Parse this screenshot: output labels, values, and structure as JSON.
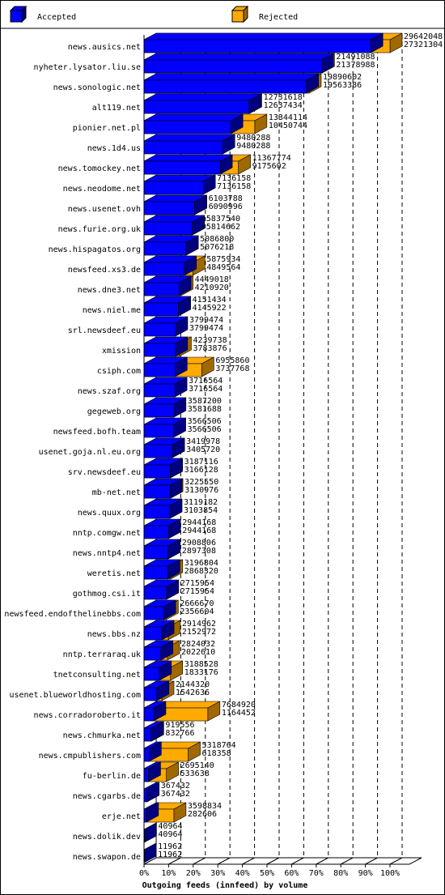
{
  "colors": {
    "accepted": "#0000ff",
    "rejected": "#ffaa00",
    "accepted_dark": "#000080",
    "rejected_dark": "#a06800",
    "grid": "#000000"
  },
  "legend": {
    "accepted_label": "Accepted",
    "rejected_label": "Rejected",
    "placement": "top"
  },
  "chart_data": {
    "type": "bar",
    "orientation": "horizontal",
    "stacked": false,
    "three_d": true,
    "xlabel": "Outgoing feeds (innfeed) by volume",
    "xlim": [
      0,
      100
    ],
    "xticks": [
      "0%",
      "10%",
      "20%",
      "30%",
      "40%",
      "50%",
      "60%",
      "70%",
      "80%",
      "90%",
      "100%"
    ],
    "grid": "vertical dashed",
    "categories": [
      "news.ausics.net",
      "nyheter.lysator.liu.se",
      "news.sonologic.net",
      "alt119.net",
      "pionier.net.pl",
      "news.1d4.us",
      "news.tomockey.net",
      "news.neodome.net",
      "news.usenet.ovh",
      "news.furie.org.uk",
      "news.hispagatos.org",
      "newsfeed.xs3.de",
      "news.dne3.net",
      "news.niel.me",
      "srl.newsdeef.eu",
      "xmission",
      "csiph.com",
      "news.szaf.org",
      "gegeweb.org",
      "newsfeed.bofh.team",
      "usenet.goja.nl.eu.org",
      "srv.newsdeef.eu",
      "mb-net.net",
      "news.quux.org",
      "nntp.comgw.net",
      "news.nntp4.net",
      "weretis.net",
      "gothmog.csi.it",
      "newsfeed.endofthelinebbs.com",
      "news.bbs.nz",
      "nntp.terraraq.uk",
      "tnetconsulting.net",
      "usenet.blueworldhosting.com",
      "news.corradoroberto.it",
      "news.chmurka.net",
      "news.cmpublishers.com",
      "fu-berlin.de",
      "news.cgarbs.de",
      "erje.net",
      "news.dolik.dev",
      "news.swapon.de"
    ],
    "series": [
      {
        "name": "Accepted",
        "values": [
          27321304,
          21378988,
          19563386,
          12637434,
          10450744,
          9480288,
          9175602,
          7136158,
          6090996,
          5814662,
          5076218,
          4849564,
          4210920,
          4145922,
          3799474,
          3783876,
          3737768,
          3716564,
          3581688,
          3566506,
          3405720,
          3166128,
          3130976,
          3103854,
          2944168,
          2897308,
          2868320,
          2715954,
          2356604,
          2152972,
          2022610,
          1833176,
          1542636,
          1164452,
          832766,
          618358,
          533638,
          367432,
          282606,
          40964,
          11962
        ]
      },
      {
        "name": "Rejected",
        "values": [
          29642048,
          21491088,
          19890602,
          12731618,
          13344114,
          9480288,
          11367774,
          7136158,
          6103788,
          5837540,
          5086800,
          5875934,
          4449018,
          4151434,
          3799474,
          4239738,
          6955860,
          3716564,
          3587200,
          3566506,
          3419978,
          3187116,
          3225550,
          3119182,
          2944168,
          2908806,
          3196804,
          2715954,
          2666670,
          2914962,
          2824032,
          3188528,
          2144320,
          7684920,
          919556,
          5318764,
          2695140,
          367432,
          3598834,
          40964,
          11962
        ]
      }
    ]
  }
}
